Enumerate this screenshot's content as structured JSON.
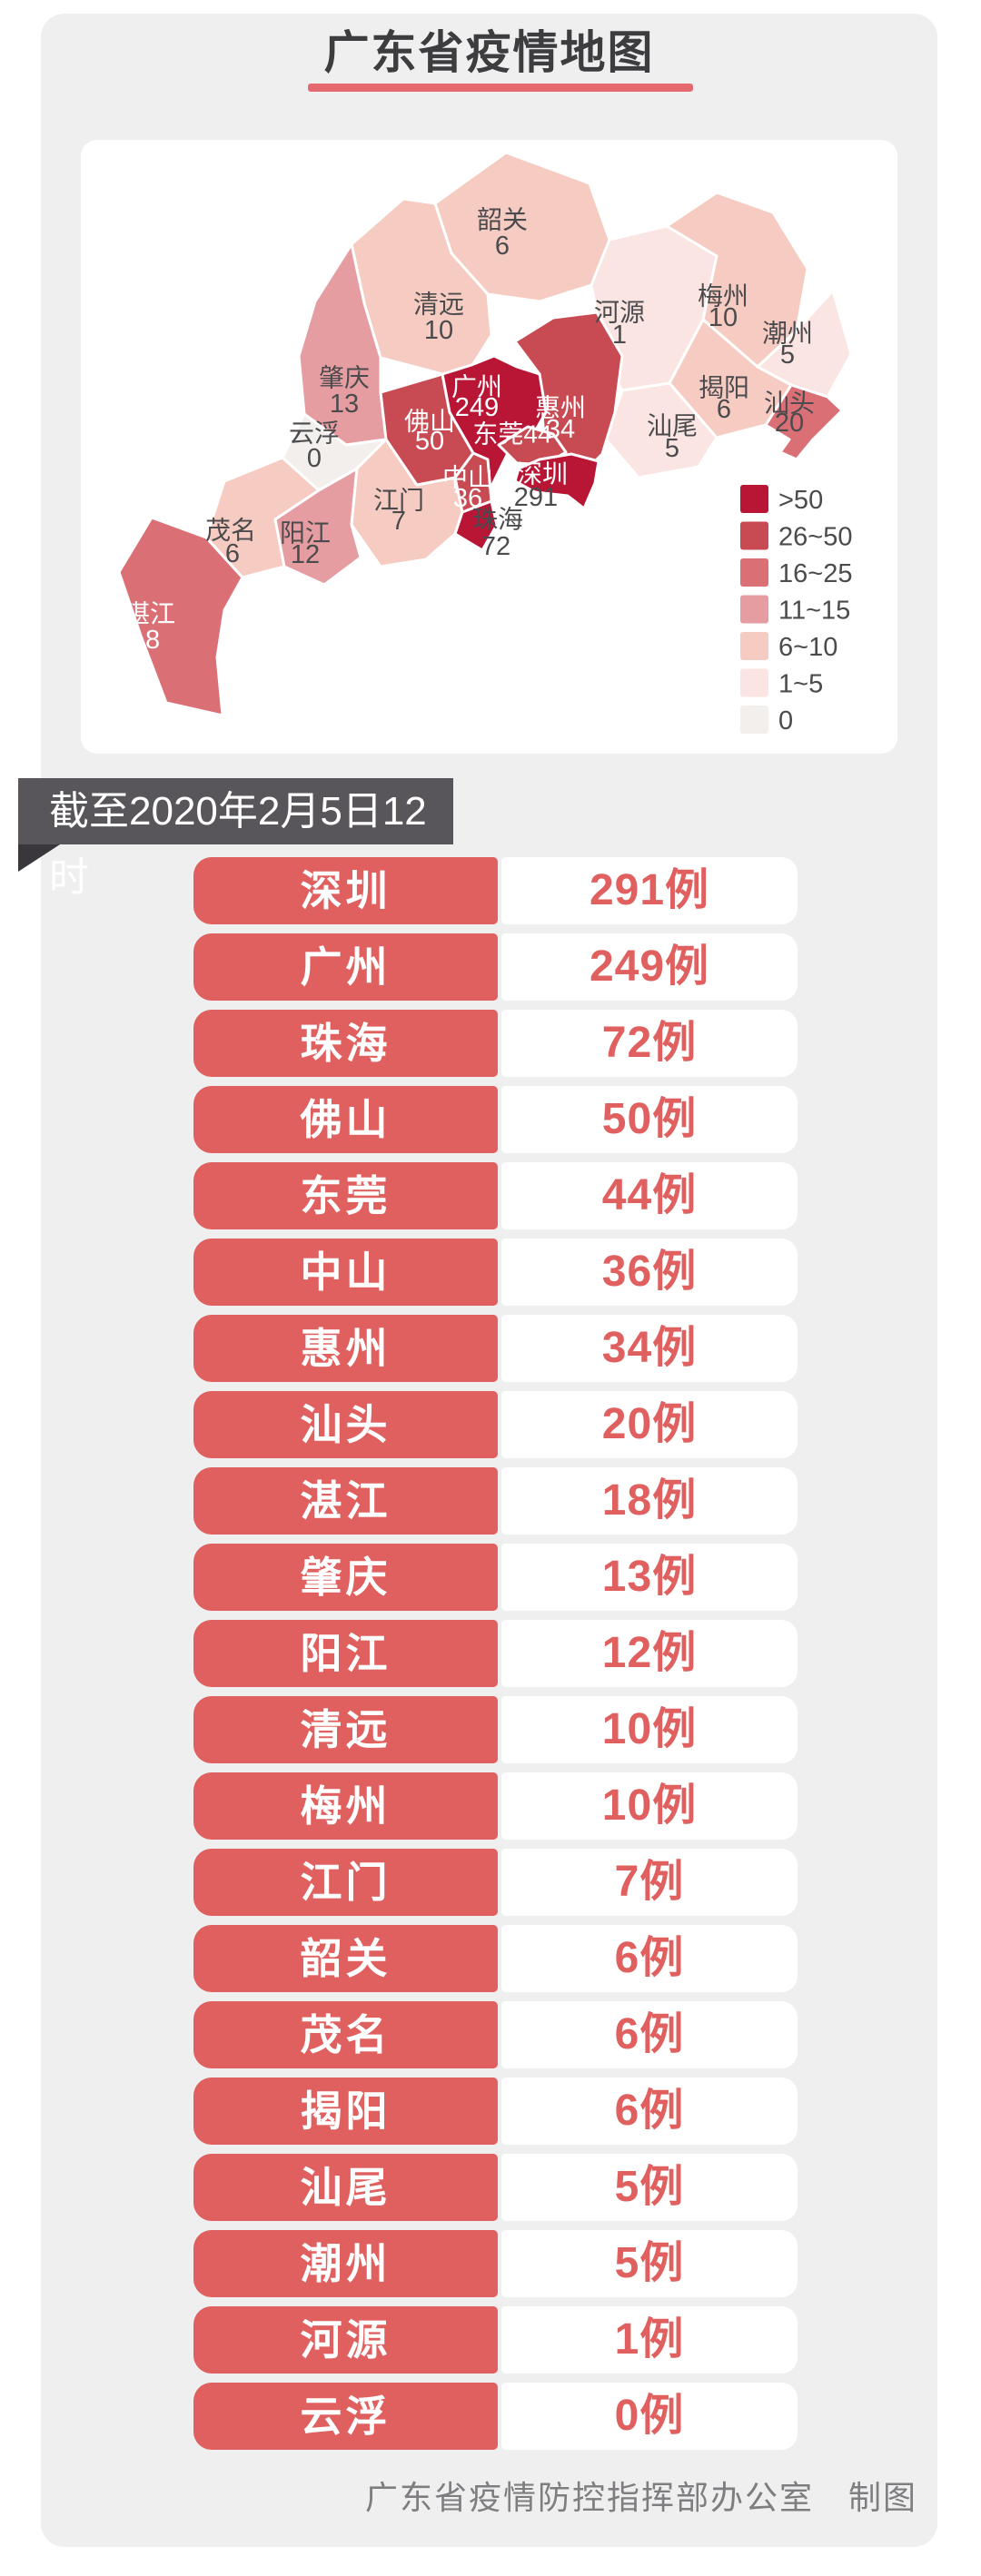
{
  "header": {
    "title": "广东省疫情地图",
    "underline_color": "#e5696e"
  },
  "date_banner": {
    "text": "截至2020年2月5日12时"
  },
  "map": {
    "palette": {
      ">50": "#b91535",
      "26~50": "#c84a52",
      "16~25": "#da7076",
      "11~15": "#e69da1",
      "6~10": "#f6cbc1",
      "1~5": "#fbe5e2",
      "0": "#f3efec"
    },
    "label_colors": {
      "dark": "#4b4b4e",
      "light": "#ffffff"
    },
    "legend": [
      {
        "label": ">50",
        "bucket": ">50"
      },
      {
        "label": "26~50",
        "bucket": "26~50"
      },
      {
        "label": "16~25",
        "bucket": "16~25"
      },
      {
        "label": "11~15",
        "bucket": "11~15"
      },
      {
        "label": "6~10",
        "bucket": "6~10"
      },
      {
        "label": "1~5",
        "bucket": "1~5"
      },
      {
        "label": "0",
        "bucket": "0"
      }
    ],
    "regions": [
      {
        "id": "shaoguan",
        "name": "韶关",
        "cases": "6",
        "bucket": "6~10",
        "name_pos": [
          464,
          88
        ],
        "value_pos": [
          464,
          117
        ],
        "name_color": "dark",
        "value_color": "dark"
      },
      {
        "id": "qingyuan",
        "name": "清远",
        "cases": "10",
        "bucket": "6~10",
        "name_pos": [
          394,
          181
        ],
        "value_pos": [
          394,
          210
        ],
        "name_color": "dark",
        "value_color": "dark"
      },
      {
        "id": "heyuan",
        "name": "河源",
        "cases": "1",
        "bucket": "1~5",
        "name_pos": [
          593,
          190
        ],
        "value_pos": [
          593,
          215
        ],
        "name_color": "dark",
        "value_color": "dark"
      },
      {
        "id": "meizhou",
        "name": "梅州",
        "cases": "10",
        "bucket": "6~10",
        "name_pos": [
          707,
          172
        ],
        "value_pos": [
          707,
          196
        ],
        "name_color": "dark",
        "value_color": "dark"
      },
      {
        "id": "chaozhou",
        "name": "潮州",
        "cases": "5",
        "bucket": "1~5",
        "name_pos": [
          778,
          213
        ],
        "value_pos": [
          778,
          237
        ],
        "name_color": "dark",
        "value_color": "dark"
      },
      {
        "id": "shantou",
        "name": "汕头",
        "cases": "20",
        "bucket": "16~25",
        "name_pos": [
          780,
          290
        ],
        "value_pos": [
          780,
          312
        ],
        "name_color": "dark",
        "value_color": "dark"
      },
      {
        "id": "jieyang",
        "name": "揭阳",
        "cases": "6",
        "bucket": "6~10",
        "name_pos": [
          708,
          273
        ],
        "value_pos": [
          708,
          297
        ],
        "name_color": "dark",
        "value_color": "dark"
      },
      {
        "id": "shanwei",
        "name": "汕尾",
        "cases": "5",
        "bucket": "1~5",
        "name_pos": [
          651,
          315
        ],
        "value_pos": [
          651,
          340
        ],
        "name_color": "dark",
        "value_color": "dark"
      },
      {
        "id": "zhanjiang",
        "name": "湛江",
        "cases": "18",
        "bucket": "16~25",
        "name_pos": [
          76,
          522
        ],
        "value_pos": [
          71,
          551
        ],
        "name_color": "light",
        "value_color": "light"
      },
      {
        "id": "maoming",
        "name": "茂名",
        "cases": "6",
        "bucket": "6~10",
        "name_pos": [
          165,
          430
        ],
        "value_pos": [
          167,
          456
        ],
        "name_color": "dark",
        "value_color": "dark"
      },
      {
        "id": "yangjiang",
        "name": "阳江",
        "cases": "12",
        "bucket": "11~15",
        "name_pos": [
          247,
          433
        ],
        "value_pos": [
          247,
          457
        ],
        "name_color": "dark",
        "value_color": "dark"
      },
      {
        "id": "zhaoqing",
        "name": "肇庆",
        "cases": "13",
        "bucket": "11~15",
        "name_pos": [
          290,
          262
        ],
        "value_pos": [
          290,
          291
        ],
        "name_color": "dark",
        "value_color": "dark"
      },
      {
        "id": "yunfu",
        "name": "云浮",
        "cases": "0",
        "bucket": "0",
        "name_pos": [
          257,
          323
        ],
        "value_pos": [
          257,
          351
        ],
        "name_color": "dark",
        "value_color": "dark"
      },
      {
        "id": "jiangmen",
        "name": "江门",
        "cases": "7",
        "bucket": "6~10",
        "name_pos": [
          350,
          397
        ],
        "value_pos": [
          350,
          420
        ],
        "name_color": "dark",
        "value_color": "dark"
      },
      {
        "id": "huizhou",
        "name": "惠州",
        "cases": "34",
        "bucket": "26~50",
        "name_pos": [
          528,
          295
        ],
        "value_pos": [
          528,
          319
        ],
        "name_color": "light",
        "value_color": "light"
      },
      {
        "id": "foshan",
        "name": "佛山",
        "cases": "50",
        "bucket": "26~50",
        "name_pos": [
          384,
          310
        ],
        "value_pos": [
          384,
          332
        ],
        "name_color": "light",
        "value_color": "light"
      },
      {
        "id": "guangzhou",
        "name": "广州",
        "cases": "249",
        "bucket": ">50",
        "name_pos": [
          436,
          272
        ],
        "value_pos": [
          436,
          295
        ],
        "name_color": "light",
        "value_color": "light"
      },
      {
        "id": "dongguan",
        "name": "东莞",
        "cases": "44",
        "bucket": "26~50",
        "inline": true,
        "name_pos": [
          475,
          324
        ],
        "name_color": "light",
        "value_color": "light"
      },
      {
        "id": "zhongshan",
        "name": "中山",
        "cases": "36",
        "bucket": "26~50",
        "name_pos": [
          426,
          372
        ],
        "value_pos": [
          426,
          395
        ],
        "name_color": "light",
        "value_color": "light"
      },
      {
        "id": "zhuhai",
        "name": "珠海",
        "cases": "72",
        "bucket": ">50",
        "name_pos": [
          459,
          418
        ],
        "value_pos": [
          457,
          448
        ],
        "name_color": "dark",
        "value_color": "dark"
      },
      {
        "id": "shenzhen",
        "name": "深圳",
        "cases": "291",
        "bucket": ">50",
        "name_pos": [
          508,
          368
        ],
        "value_pos": [
          501,
          394
        ],
        "name_color": "light",
        "value_color": "dark"
      }
    ]
  },
  "table": {
    "rows": [
      {
        "city": "深圳",
        "cases": "291例"
      },
      {
        "city": "广州",
        "cases": "249例"
      },
      {
        "city": "珠海",
        "cases": "72例"
      },
      {
        "city": "佛山",
        "cases": "50例"
      },
      {
        "city": "东莞",
        "cases": "44例"
      },
      {
        "city": "中山",
        "cases": "36例"
      },
      {
        "city": "惠州",
        "cases": "34例"
      },
      {
        "city": "汕头",
        "cases": "20例"
      },
      {
        "city": "湛江",
        "cases": "18例"
      },
      {
        "city": "肇庆",
        "cases": "13例"
      },
      {
        "city": "阳江",
        "cases": "12例"
      },
      {
        "city": "清远",
        "cases": "10例"
      },
      {
        "city": "梅州",
        "cases": "10例"
      },
      {
        "city": "江门",
        "cases": "7例"
      },
      {
        "city": "韶关",
        "cases": "6例"
      },
      {
        "city": "茂名",
        "cases": "6例"
      },
      {
        "city": "揭阳",
        "cases": "6例"
      },
      {
        "city": "汕尾",
        "cases": "5例"
      },
      {
        "city": "潮州",
        "cases": "5例"
      },
      {
        "city": "河源",
        "cases": "1例"
      },
      {
        "city": "云浮",
        "cases": "0例"
      }
    ]
  },
  "footer": {
    "credit": "广东省疫情防控指挥部办公室　制图"
  },
  "chart_data": {
    "type": "table",
    "title": "广东省疫情地图",
    "subtitle": "截至2020年2月5日12时",
    "categories": [
      "深圳",
      "广州",
      "珠海",
      "佛山",
      "东莞",
      "中山",
      "惠州",
      "汕头",
      "湛江",
      "肇庆",
      "阳江",
      "清远",
      "梅州",
      "江门",
      "韶关",
      "茂名",
      "揭阳",
      "汕尾",
      "潮州",
      "河源",
      "云浮"
    ],
    "values": [
      291,
      249,
      72,
      50,
      44,
      36,
      34,
      20,
      18,
      13,
      12,
      10,
      10,
      7,
      6,
      6,
      6,
      5,
      5,
      1,
      0
    ],
    "unit": "例",
    "legend_buckets": [
      ">50",
      "26~50",
      "16~25",
      "11~15",
      "6~10",
      "1~5",
      "0"
    ],
    "legend_position": "bottom-right-of-map"
  }
}
